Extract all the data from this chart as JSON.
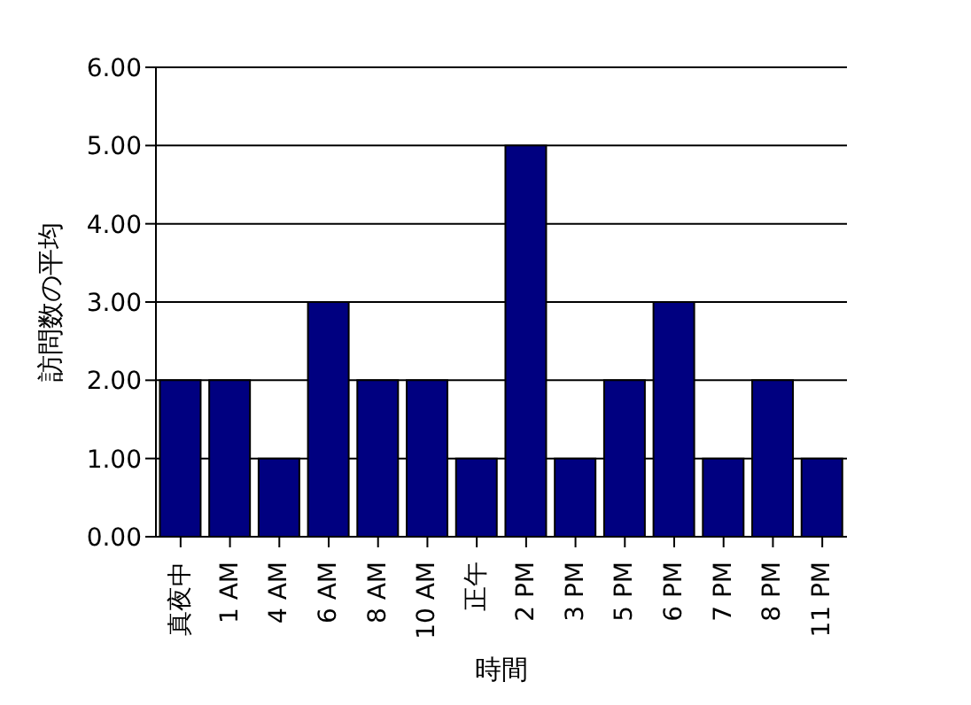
{
  "chart_data": {
    "type": "bar",
    "xlabel": "時間",
    "ylabel": "訪問数の平均",
    "categories": [
      "真夜中",
      "1 AM",
      "4 AM",
      "6 AM",
      "8 AM",
      "10 AM",
      "正午",
      "2 PM",
      "3 PM",
      "5 PM",
      "6 PM",
      "7 PM",
      "8 PM",
      "11 PM"
    ],
    "values": [
      2,
      2,
      1,
      3,
      2,
      2,
      1,
      5,
      1,
      2,
      3,
      1,
      2,
      1
    ],
    "color": "#000080",
    "ylim": [
      0,
      6
    ],
    "yticks": [
      {
        "value": 0,
        "label": "0.00"
      },
      {
        "value": 1,
        "label": "1.00"
      },
      {
        "value": 2,
        "label": "2.00"
      },
      {
        "value": 3,
        "label": "3.00"
      },
      {
        "value": 4,
        "label": "4.00"
      },
      {
        "value": 5,
        "label": "5.00"
      },
      {
        "value": 6,
        "label": "6.00"
      }
    ],
    "grid": "y"
  }
}
